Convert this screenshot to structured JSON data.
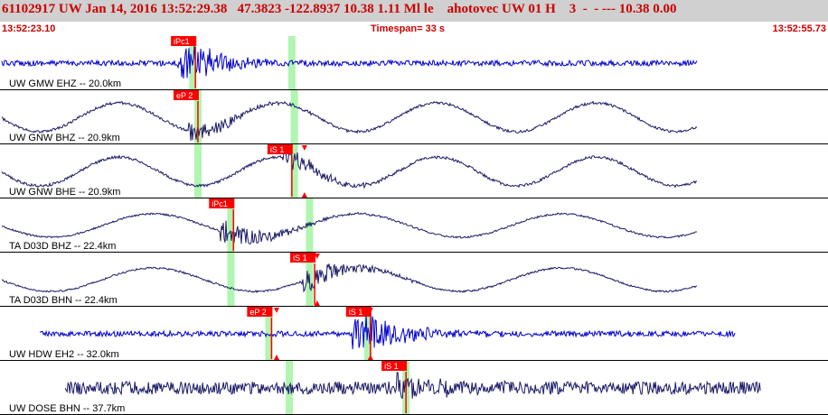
{
  "header": {
    "summary": "61102917 UW Jan 14, 2016 13:52:29.38   47.3823 -122.8937 10.38 1.11 Ml le    ahotovec UW 01 H    3  -  - --- 10.38 0.00",
    "start_time": "13:52:23.10",
    "timespan": "Timespan=  33 s",
    "end_time": "13:52:55.73"
  },
  "colors": {
    "header_bg": "#d0d0d0",
    "header_text": "#cc0000",
    "pick": "#ff0000",
    "window": "#b0f5b0",
    "trace_blue": "#0000cc",
    "trace_navy": "#1a1a66"
  },
  "panels": [
    {
      "label": "UW GMW EHZ -- 20.0km",
      "color": "blue",
      "picks": [
        {
          "label": "iPc1",
          "time": 7.7
        }
      ],
      "windows": [
        7.6,
        11.5
      ],
      "extent": [
        0,
        27.5
      ],
      "pattern": "noise_then_burst",
      "markers": []
    },
    {
      "label": "UW GNW BHZ -- 20.9km",
      "color": "navy",
      "picks": [
        {
          "label": "eP 2",
          "time": 7.8
        }
      ],
      "windows": [
        7.8,
        11.6
      ],
      "extent": [
        0,
        27.5
      ],
      "pattern": "long_wave",
      "markers": []
    },
    {
      "label": "UW GNW BHE -- 20.9km",
      "color": "navy",
      "picks": [
        {
          "label": "iS 1",
          "time": 11.5
        }
      ],
      "windows": [
        7.8,
        11.6
      ],
      "extent": [
        0,
        27.5
      ],
      "pattern": "long_wave",
      "markers": [
        {
          "time": 12.0
        }
      ]
    },
    {
      "label": "TA D03D BHZ -- 22.4km",
      "color": "navy",
      "picks": [
        {
          "label": "iPc1",
          "time": 9.2
        }
      ],
      "windows": [
        9.1,
        12.2
      ],
      "extent": [
        0,
        27.5
      ],
      "pattern": "long_wave_burst",
      "markers": []
    },
    {
      "label": "TA D03D BHN -- 22.4km",
      "color": "navy",
      "picks": [
        {
          "label": "iS 1",
          "time": 12.4
        }
      ],
      "windows": [
        9.1,
        12.2
      ],
      "extent": [
        0,
        27.5
      ],
      "pattern": "long_wave_burst",
      "markers": [
        {
          "time": 12.5
        }
      ]
    },
    {
      "label": "UW HDW EH2 -- 32.0km",
      "color": "blue",
      "picks": [
        {
          "label": "eP 2",
          "time": 10.7
        },
        {
          "label": "iS 1",
          "time": 14.6
        }
      ],
      "windows": [
        10.6,
        14.5
      ],
      "extent": [
        1.5,
        29
      ],
      "pattern": "noise_then_burst",
      "markers": [
        {
          "time": 10.9
        },
        {
          "time": 14.6
        }
      ]
    },
    {
      "label": "UW DOSE BHN -- 37.7km",
      "color": "navy",
      "picks": [
        {
          "label": "iS 1",
          "time": 16.0
        }
      ],
      "windows": [
        11.4,
        16.0
      ],
      "extent": [
        2.5,
        30
      ],
      "pattern": "noisy",
      "markers": []
    }
  ]
}
